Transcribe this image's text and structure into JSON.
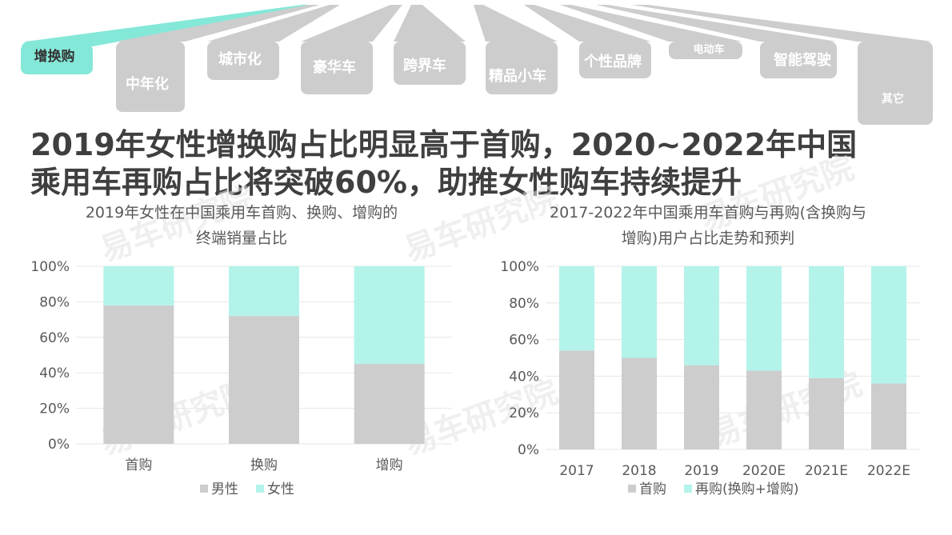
{
  "banner": {
    "tabs": [
      "增换购",
      "中年化",
      "城市化",
      "豪华车",
      "跨界车",
      "精品小车",
      "个性品牌",
      "电动车",
      "智能驾驶",
      "其它"
    ]
  },
  "headline": {
    "line1": "2019年女性增换购占比明显高于首购，2020~2022年中国",
    "line2": "乘用车再购占比将突破60%，助推女性购车持续提升"
  },
  "watermark": "易车研究院",
  "colors": {
    "gray": "#cdcdcd",
    "teal": "#b3f3ea",
    "tab_active": "#84e8d8",
    "grid": "#e6e6e6",
    "text": "#595959"
  },
  "chart_data": [
    {
      "type": "bar",
      "stacked": true,
      "title_lines": [
        "2019年女性在中国乘用车首购、换购、增购的",
        "终端销量占比"
      ],
      "categories": [
        "首购",
        "换购",
        "增购"
      ],
      "series": [
        {
          "name": "男性",
          "values": [
            78,
            72,
            45
          ]
        },
        {
          "name": "女性",
          "values": [
            22,
            28,
            55
          ]
        }
      ],
      "ylim": [
        0,
        100
      ],
      "yticks": [
        "0%",
        "20%",
        "40%",
        "60%",
        "80%",
        "100%"
      ],
      "legend": "bottom"
    },
    {
      "type": "bar",
      "stacked": true,
      "title_lines": [
        "2017-2022年中国乘用车首购与再购(含换购与",
        "增购)用户占比走势和预判"
      ],
      "categories": [
        "2017",
        "2018",
        "2019",
        "2020E",
        "2021E",
        "2022E"
      ],
      "series": [
        {
          "name": "首购",
          "values": [
            54,
            50,
            46,
            43,
            39,
            36
          ]
        },
        {
          "name": "再购(换购+增购)",
          "values": [
            46,
            50,
            54,
            57,
            61,
            64
          ]
        }
      ],
      "ylim": [
        0,
        100
      ],
      "yticks": [
        "0%",
        "20%",
        "40%",
        "60%",
        "80%",
        "100%"
      ],
      "legend": "bottom"
    }
  ]
}
